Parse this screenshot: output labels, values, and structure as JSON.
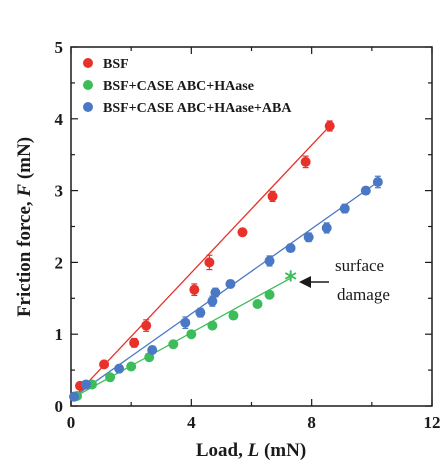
{
  "chart_data": {
    "type": "scatter",
    "xlabel_main": "Load, ",
    "xlabel_var": "L",
    "xlabel_unit": " (mN)",
    "ylabel_main": "Friction force, ",
    "ylabel_var": "F",
    "ylabel_unit": " (mN)",
    "xlim": [
      0,
      12
    ],
    "ylim": [
      0,
      5
    ],
    "x_ticks": [
      "0",
      "4",
      "8",
      "12"
    ],
    "y_ticks": [
      "0",
      "1",
      "2",
      "3",
      "4",
      "5"
    ],
    "legend_position": "top-left",
    "series": [
      {
        "name": "BSF",
        "color": "#e8312a",
        "x": [
          0.3,
          1.1,
          2.1,
          2.5,
          4.1,
          4.6,
          5.7,
          6.7,
          7.8,
          8.6
        ],
        "y": [
          0.28,
          0.58,
          0.88,
          1.12,
          1.62,
          2.0,
          2.42,
          2.92,
          3.4,
          3.9
        ],
        "err": [
          0.04,
          0.03,
          0.06,
          0.08,
          0.08,
          0.1,
          0.05,
          0.07,
          0.08,
          0.07
        ],
        "fit": [
          [
            0,
            0.08
          ],
          [
            8.6,
            3.9
          ]
        ]
      },
      {
        "name": "BSF+CASE ABC+HAase",
        "color": "#3dbd5a",
        "x": [
          0.2,
          0.7,
          1.3,
          2.0,
          2.6,
          3.4,
          4.0,
          4.7,
          5.4,
          6.2,
          6.6,
          7.3
        ],
        "y": [
          0.14,
          0.3,
          0.4,
          0.55,
          0.68,
          0.86,
          1.0,
          1.12,
          1.26,
          1.42,
          1.55,
          1.78
        ],
        "err": [
          0,
          0,
          0,
          0,
          0,
          0,
          0,
          0,
          0,
          0,
          0,
          0
        ],
        "fit": [
          [
            0,
            0.1
          ],
          [
            7.3,
            1.78
          ]
        ],
        "damage_x": 7.3,
        "damage_y": 1.78
      },
      {
        "name": "BSF+CASE ABC+HAase+ABA",
        "color": "#4a78c4",
        "x": [
          0.1,
          0.5,
          1.6,
          2.7,
          3.8,
          4.3,
          4.7,
          4.8,
          5.3,
          6.6,
          7.3,
          7.9,
          8.5,
          9.1,
          9.8,
          10.2
        ],
        "y": [
          0.13,
          0.3,
          0.52,
          0.78,
          1.16,
          1.3,
          1.46,
          1.58,
          1.7,
          2.02,
          2.2,
          2.35,
          2.48,
          2.75,
          3.0,
          3.12
        ],
        "err": [
          0,
          0,
          0.04,
          0.05,
          0.08,
          0.06,
          0.07,
          0.06,
          0.05,
          0.07,
          0.05,
          0.06,
          0.07,
          0.06,
          0.05,
          0.08
        ],
        "fit": [
          [
            0,
            0.1
          ],
          [
            10.2,
            3.12
          ]
        ]
      }
    ],
    "annotation": {
      "line1": "surface",
      "line2": "damage",
      "marker": "*"
    }
  }
}
